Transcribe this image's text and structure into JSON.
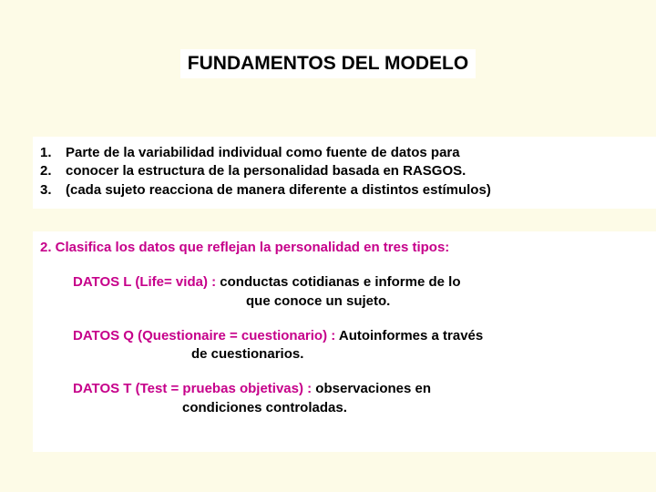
{
  "colors": {
    "page_bg": "#fdfbe7",
    "title_bg": "#ffffff",
    "title_color": "#000000",
    "block_bg": "#ffffff",
    "block_text": "#000000",
    "heading_color": "#c6008a"
  },
  "title": "FUNDAMENTOS DEL MODELO",
  "list1": [
    {
      "n": "1.",
      "t": "Parte de la variabilidad individual como fuente de datos para"
    },
    {
      "n": "2.",
      "t": "conocer la estructura de la personalidad basada en RASGOS."
    },
    {
      "n": "3.",
      "t": "(cada sujeto reacciona de manera diferente a distintos estímulos)"
    }
  ],
  "section2": {
    "heading": "2. Clasifica los datos que reflejan la personalidad en tres tipos:",
    "items": [
      {
        "label": "DATOS L (Life= vida) :",
        "desc1": " conductas cotidianas e informe de lo",
        "desc2": "que conoce un sujeto."
      },
      {
        "label": "DATOS Q (Questionaire = cuestionario) :",
        "desc1": " Autoinformes a través",
        "desc2": "de cuestionarios."
      },
      {
        "label": "DATOS T (Test = pruebas objetivas) :",
        "desc1": " observaciones en",
        "desc2": "condiciones controladas."
      }
    ]
  }
}
